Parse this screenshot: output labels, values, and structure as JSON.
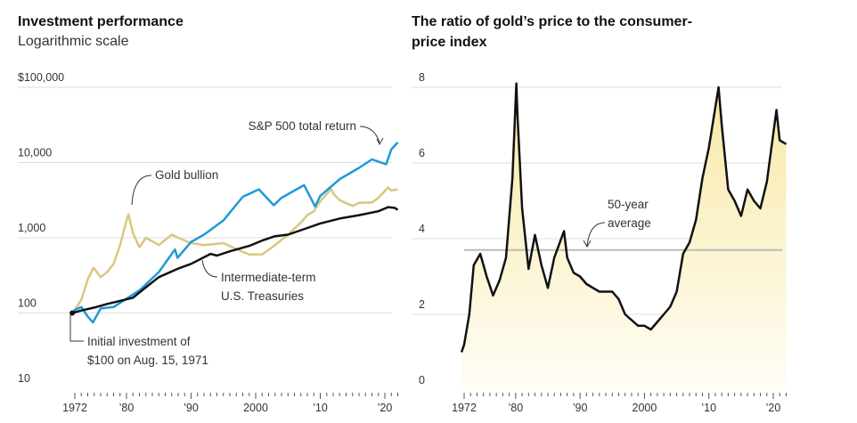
{
  "left": {
    "title": "Investment performance",
    "subtitle": "Logarithmic scale"
  },
  "right": {
    "title_line1": "The ratio of gold’s price to the consumer-",
    "title_line2": "price index"
  },
  "colors": {
    "gold": "#d8c77e",
    "sp500": "#1e9ad6",
    "treasury": "#111111",
    "ratio_fill": "#fbf4cf",
    "average": "#bbbbbb"
  },
  "chart_data": [
    {
      "type": "line",
      "title": "Investment performance",
      "subtitle": "Logarithmic scale",
      "y_scale": "log",
      "ylim": [
        10,
        100000
      ],
      "y_ticks": [
        100000,
        10000,
        1000,
        100,
        10
      ],
      "y_tick_labels": [
        "$100,000",
        "10,000",
        "1,000",
        "100",
        "10"
      ],
      "x_ticks": [
        1972,
        1980,
        1990,
        2000,
        2010,
        2020
      ],
      "x_tick_labels": [
        "1972",
        "’80",
        "’90",
        "2000",
        "’10",
        "’20"
      ],
      "series": [
        {
          "name": "Gold bullion",
          "x": [
            1971.6,
            1972,
            1973,
            1974,
            1974.9,
            1976,
            1977,
            1978,
            1979,
            1980,
            1980.3,
            1981,
            1982,
            1983,
            1985,
            1987,
            1988,
            1990,
            1992,
            1995,
            1998,
            1999,
            2001,
            2003,
            2005,
            2007,
            2008,
            2009,
            2010,
            2011.7,
            2012,
            2013,
            2015,
            2016,
            2018,
            2019,
            2020.5,
            2021,
            2022
          ],
          "y": [
            100,
            110,
            150,
            280,
            400,
            300,
            350,
            450,
            800,
            1700,
            2050,
            1150,
            750,
            1000,
            800,
            1100,
            1000,
            850,
            800,
            850,
            650,
            600,
            600,
            800,
            1100,
            1600,
            2000,
            2250,
            3050,
            4450,
            3900,
            3150,
            2650,
            2900,
            2950,
            3400,
            4650,
            4250,
            4400
          ]
        },
        {
          "name": "S&P 500 total return",
          "x": [
            1971.6,
            1972,
            1973,
            1974,
            1974.8,
            1976,
            1978,
            1980,
            1982,
            1985,
            1987.5,
            1987.9,
            1990,
            1992,
            1995,
            1998,
            2000.5,
            2002.8,
            2004,
            2007.5,
            2009.2,
            2010,
            2013,
            2016,
            2018,
            2020.2,
            2021,
            2022
          ],
          "y": [
            100,
            110,
            120,
            90,
            75,
            115,
            120,
            155,
            200,
            350,
            700,
            540,
            880,
            1100,
            1700,
            3500,
            4400,
            2700,
            3400,
            5000,
            2600,
            3600,
            6000,
            8500,
            11000,
            9500,
            15000,
            18500
          ]
        },
        {
          "name": "Intermediate-term U.S. Treasuries",
          "x": [
            1971.6,
            1973,
            1975,
            1977,
            1979,
            1981,
            1983,
            1985,
            1988,
            1990,
            1993,
            1994,
            1996,
            1999,
            2001,
            2003,
            2005,
            2008,
            2010,
            2013,
            2016,
            2019,
            2020.5,
            2021.5,
            2022
          ],
          "y": [
            100,
            108,
            118,
            132,
            145,
            160,
            220,
            300,
            390,
            450,
            610,
            580,
            660,
            780,
            920,
            1050,
            1100,
            1350,
            1550,
            1800,
            2000,
            2250,
            2550,
            2500,
            2350
          ]
        }
      ],
      "annotations": [
        {
          "label": "S&P 500 total return"
        },
        {
          "label": "Gold bullion"
        },
        {
          "label_line1": "Intermediate-term",
          "label_line2": "U.S. Treasuries"
        },
        {
          "label_line1": "Initial investment of",
          "label_line2": "$100 on Aug. 15, 1971"
        }
      ]
    },
    {
      "type": "area",
      "title": "The ratio of gold’s price to the consumer-price index",
      "ylim": [
        0,
        8
      ],
      "y_ticks": [
        8,
        6,
        4,
        2,
        0
      ],
      "y_tick_labels": [
        "8",
        "6",
        "4",
        "2",
        "0"
      ],
      "x_ticks": [
        1972,
        1980,
        1990,
        2000,
        2010,
        2020
      ],
      "x_tick_labels": [
        "1972",
        "’80",
        "’90",
        "2000",
        "’10",
        "’20"
      ],
      "average": 3.7,
      "series": [
        {
          "name": "",
          "x": [
            1971.6,
            1972,
            1972.8,
            1973.5,
            1974.5,
            1975.5,
            1976.5,
            1977.5,
            1978.5,
            1979.5,
            1980.1,
            1980.3,
            1981,
            1982,
            1983,
            1984,
            1985,
            1986,
            1987.5,
            1988,
            1989,
            1990,
            1991,
            1993,
            1995,
            1996,
            1997,
            1999,
            2000,
            2001,
            2002,
            2003,
            2004,
            2005,
            2006,
            2007,
            2008,
            2009,
            2010,
            2011.5,
            2012,
            2013,
            2014,
            2015,
            2016,
            2017,
            2018,
            2019,
            2020.5,
            2021,
            2022
          ],
          "y": [
            1.0,
            1.2,
            2.0,
            3.3,
            3.6,
            3.0,
            2.5,
            2.9,
            3.5,
            5.6,
            8.1,
            7.2,
            4.8,
            3.2,
            4.1,
            3.3,
            2.7,
            3.5,
            4.2,
            3.5,
            3.1,
            3.0,
            2.8,
            2.6,
            2.6,
            2.4,
            2.0,
            1.7,
            1.7,
            1.6,
            1.8,
            2.0,
            2.2,
            2.6,
            3.6,
            3.9,
            4.5,
            5.6,
            6.4,
            8.0,
            7.0,
            5.3,
            5.0,
            4.6,
            5.3,
            5.0,
            4.8,
            5.5,
            7.4,
            6.6,
            6.5
          ]
        }
      ],
      "annotations": [
        {
          "label_line1": "50-year",
          "label_line2": "average"
        }
      ]
    }
  ]
}
